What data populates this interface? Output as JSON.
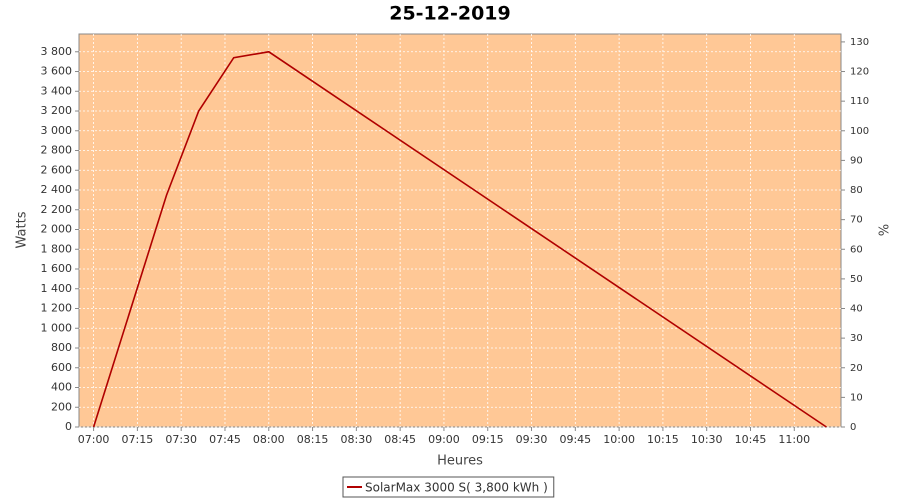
{
  "chart_data": {
    "type": "line",
    "title": "25-12-2019",
    "x_label": "Heures",
    "y_label": "Watts",
    "y2_label": "%",
    "x": [
      "07:00",
      "07:25",
      "07:36",
      "07:48",
      "08:00",
      "11:11"
    ],
    "series": [
      {
        "name": "SolarMax 3000 S( 3,800 kWh )",
        "color": "#b00000",
        "values": [
          0,
          2350,
          3200,
          3740,
          3800,
          0
        ]
      }
    ],
    "xlim": [
      "06:55",
      "11:16"
    ],
    "xticks": [
      "07:00",
      "07:15",
      "07:30",
      "07:45",
      "08:00",
      "08:15",
      "08:30",
      "08:45",
      "09:00",
      "09:15",
      "09:30",
      "09:45",
      "10:00",
      "10:15",
      "10:30",
      "10:45",
      "11:00"
    ],
    "ylim": [
      0,
      3980
    ],
    "yticks": [
      0,
      200,
      400,
      600,
      800,
      {
        "value": 1000,
        "label": "1 000"
      },
      {
        "value": 1200,
        "label": "1 200"
      },
      {
        "value": 1400,
        "label": "1 400"
      },
      {
        "value": 1600,
        "label": "1 600"
      },
      {
        "value": 1800,
        "label": "1 800"
      },
      {
        "value": 2000,
        "label": "2 000"
      },
      {
        "value": 2200,
        "label": "2 200"
      },
      {
        "value": 2400,
        "label": "2 400"
      },
      {
        "value": 2600,
        "label": "2 600"
      },
      {
        "value": 2800,
        "label": "2 800"
      },
      {
        "value": 3000,
        "label": "3 000"
      },
      {
        "value": 3200,
        "label": "3 200"
      },
      {
        "value": 3400,
        "label": "3 400"
      },
      {
        "value": 3600,
        "label": "3 600"
      },
      {
        "value": 3800,
        "label": "3 800"
      }
    ],
    "y2lim": [
      0,
      132.67
    ],
    "y2ticks": [
      0,
      10,
      20,
      30,
      40,
      50,
      60,
      70,
      80,
      90,
      100,
      110,
      120,
      130
    ],
    "grid": true,
    "background": "#ffc896",
    "legend": "bottom"
  }
}
